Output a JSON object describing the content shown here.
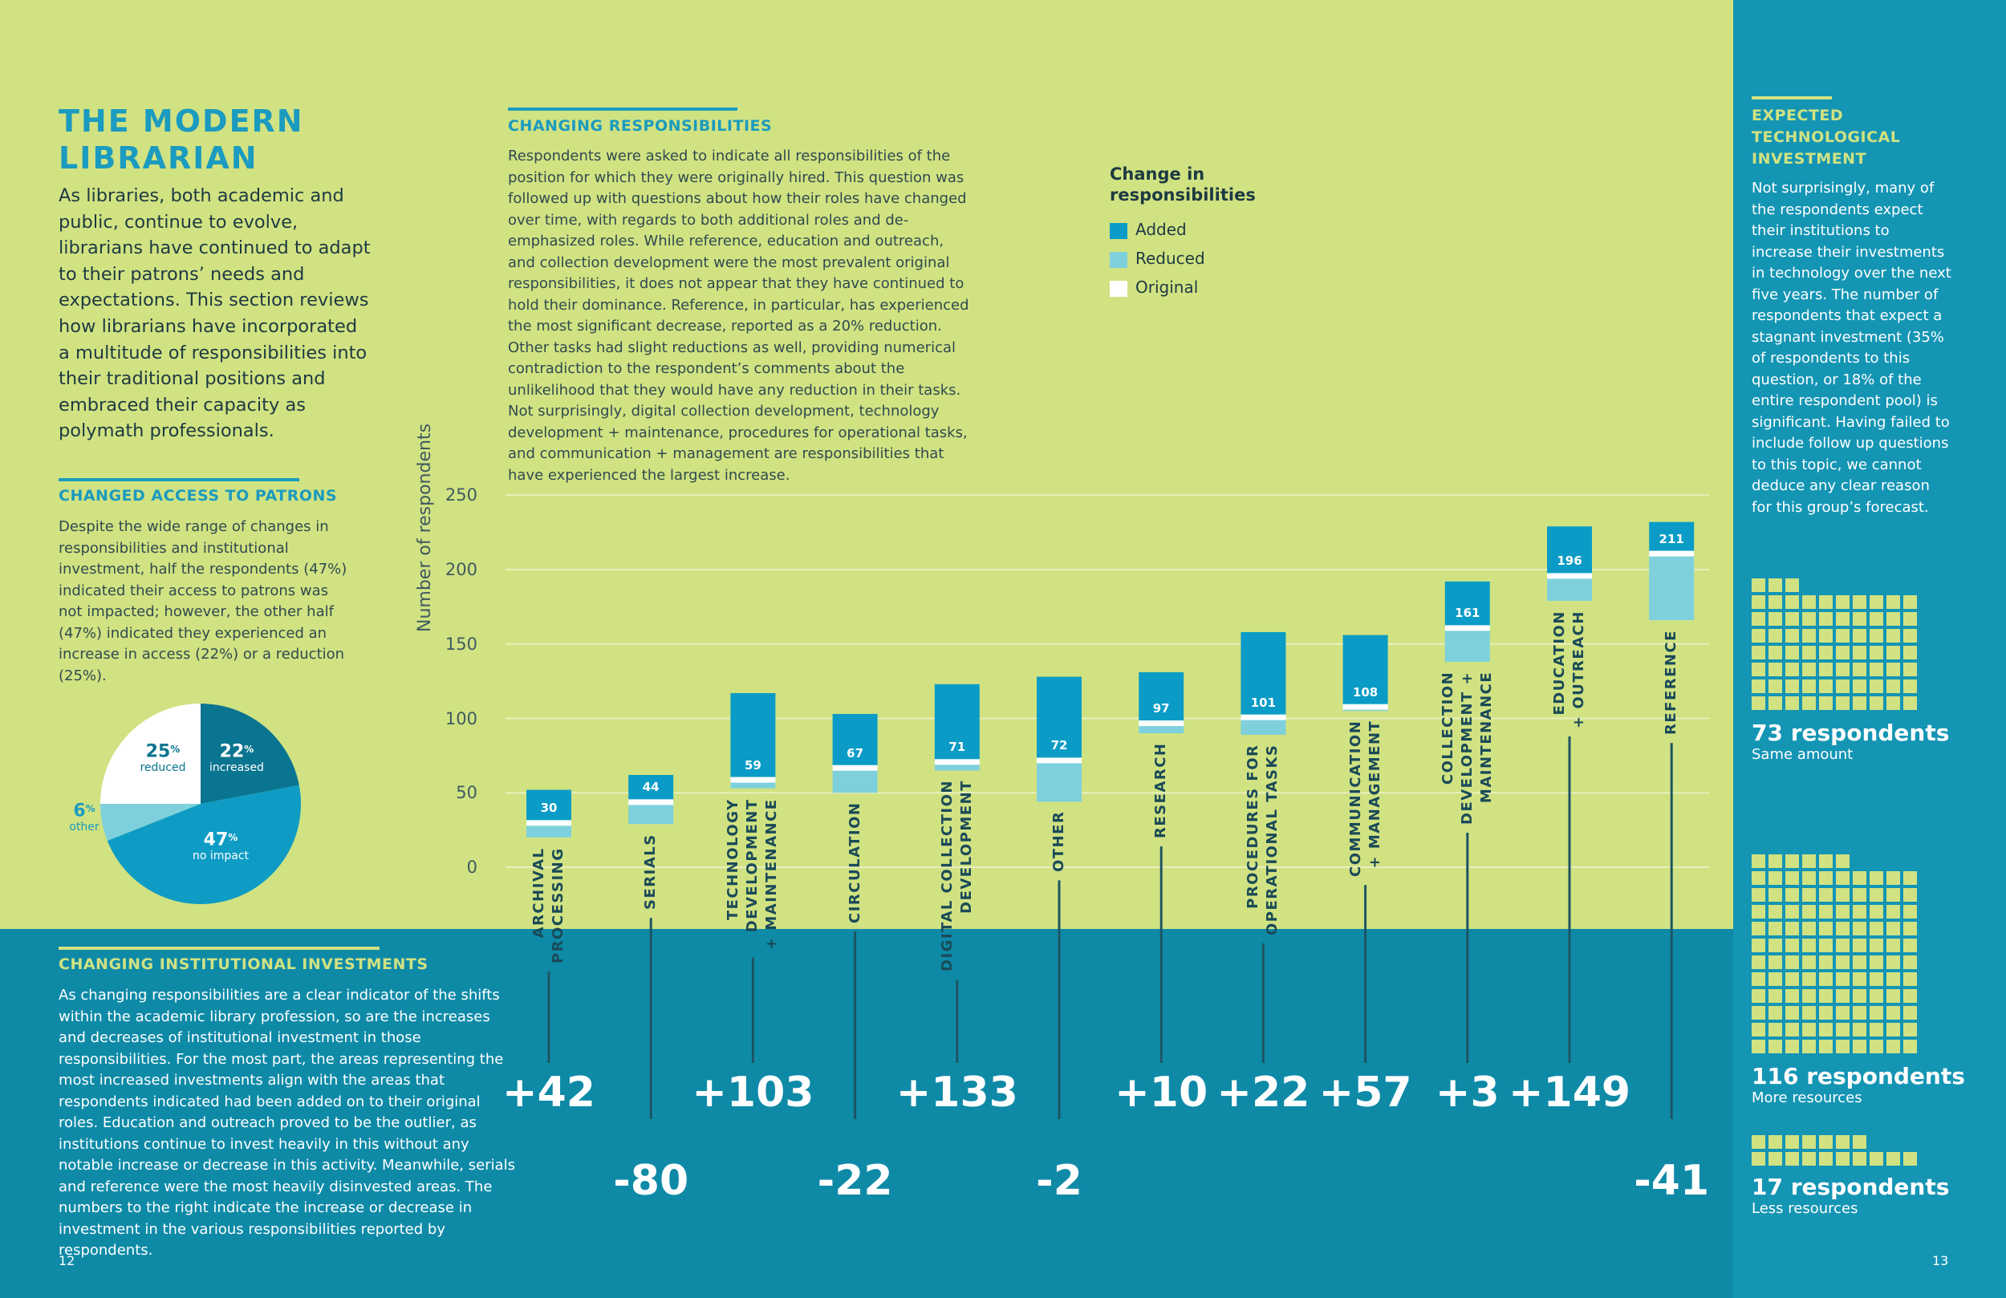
{
  "left": {
    "title": "THE MODERN LIBRARIAN",
    "intro": "As libraries, both academic and public, continue to evolve, librarians have continued to adapt to their patrons’ needs and expectations. This section reviews how librarians have incorporated a multitude of responsibilities into their traditional positions and embraced their capacity as polymath professionals.",
    "access_heading": "CHANGED ACCESS TO PATRONS",
    "access_body": "Despite the wide range of changes in responsibilities and institutional investment, half the respondents (47%) indicated their access to patrons was not impacted; however, the other half (47%) indicated they experienced an increase in access (22%) or a reduction (25%).",
    "invest_heading": "CHANGING INSTITUTIONAL INVESTMENTS",
    "invest_body": "As changing responsibilities are a clear indicator of the shifts within the academic library profession, so are the increases and decreases of institutional investment in those responsibilities. For the most part, the areas representing the most increased investments align with the areas that respondents indicated had been added on to their original roles. Education and outreach proved to be the outlier, as institutions continue to invest heavily in this without any notable increase or decrease in this activity. Meanwhile, serials and reference were the most heavily disinvested areas. The numbers to the right indicate the increase or decrease in investment in the various responsibilities reported by respondents.",
    "page_number": "12"
  },
  "pie": {
    "slices": [
      {
        "label": "increased",
        "value": 22,
        "value_text": "22",
        "color": "#0a7590"
      },
      {
        "label": "no impact",
        "value": 47,
        "value_text": "47",
        "color": "#0e9cc4"
      },
      {
        "label": "other",
        "value": 6,
        "value_text": "6",
        "color": "#7ed1dc"
      },
      {
        "label": "reduced",
        "value": 25,
        "value_text": "25",
        "color": "#ffffff"
      }
    ],
    "percent_sign": "%"
  },
  "middle": {
    "heading": "CHANGING RESPONSIBILITIES",
    "body": "Respondents were asked to indicate all responsibilities of the position for which they were originally hired. This question was followed up with questions about how their roles have changed over time, with regards to both additional roles and de-emphasized roles. While reference, education and outreach, and collection development were the most prevalent original responsibilities, it does not appear that they have continued to hold their dominance. Reference, in particular, has experienced the most significant decrease, reported as a 20% reduction. Other tasks had slight reductions as well, providing numerical contradiction to the respondent’s comments about the unlikelihood that they would have any reduction in their tasks. Not surprisingly, digital collection development, technology development + maintenance, procedures for operational tasks, and communication + management are responsibilities that have experienced the largest increase."
  },
  "chart_data": {
    "type": "bar",
    "title": "Change in responsibilities",
    "ylabel": "Number of respondents",
    "ylim": [
      0,
      250
    ],
    "yticks": [
      "0",
      "50",
      "100",
      "150",
      "200",
      "250"
    ],
    "legend": [
      {
        "name": "Added",
        "color": "#0a9cc6"
      },
      {
        "name": "Reduced",
        "color": "#7ed1dc"
      },
      {
        "name": "Original",
        "color": "#ffffff"
      }
    ],
    "categories": [
      {
        "name": "ARCHIVAL PROCESSING",
        "lines": [
          "ARCHIVAL",
          "PROCESSING"
        ],
        "original": 30,
        "original_text": "30",
        "added": 22,
        "reduced": 10,
        "investment": "+42"
      },
      {
        "name": "SERIALS",
        "lines": [
          "SERIALS"
        ],
        "original": 44,
        "original_text": "44",
        "added": 18,
        "reduced": 15,
        "investment": "-80"
      },
      {
        "name": "TECHNOLOGY DEVELOPMENT + MAINTENANCE",
        "lines": [
          "TECHNOLOGY",
          "DEVELOPMENT",
          "+ MAINTENANCE"
        ],
        "original": 59,
        "original_text": "59",
        "added": 58,
        "reduced": 6,
        "investment": "+103"
      },
      {
        "name": "CIRCULATION",
        "lines": [
          "CIRCULATION"
        ],
        "original": 67,
        "original_text": "67",
        "added": 36,
        "reduced": 17,
        "investment": "-22"
      },
      {
        "name": "DIGITAL COLLECTION DEVELOPMENT",
        "lines": [
          "DIGITAL COLLECTION",
          "DEVELOPMENT"
        ],
        "original": 71,
        "original_text": "71",
        "added": 52,
        "reduced": 6,
        "investment": "+133"
      },
      {
        "name": "OTHER",
        "lines": [
          "OTHER"
        ],
        "original": 72,
        "original_text": "72",
        "added": 56,
        "reduced": 28,
        "investment": "-2"
      },
      {
        "name": "RESEARCH",
        "lines": [
          "RESEARCH"
        ],
        "original": 97,
        "original_text": "97",
        "added": 34,
        "reduced": 7,
        "investment": "+10"
      },
      {
        "name": "PROCEDURES FOR OPERATIONAL TASKS",
        "lines": [
          "PROCEDURES FOR",
          "OPERATIONAL TASKS"
        ],
        "original": 101,
        "original_text": "101",
        "added": 57,
        "reduced": 12,
        "investment": "+22"
      },
      {
        "name": "COMMUNICATION + MANAGEMENT",
        "lines": [
          "COMMUNICATION",
          "+ MANAGEMENT"
        ],
        "original": 108,
        "original_text": "108",
        "added": 48,
        "reduced": 3,
        "investment": "+57"
      },
      {
        "name": "COLLECTION DEVELOPMENT + MAINTENANCE",
        "lines": [
          "COLLECTION",
          "DEVELOPMENT +",
          "MAINTENANCE"
        ],
        "original": 161,
        "original_text": "161",
        "added": 31,
        "reduced": 23,
        "investment": "+3"
      },
      {
        "name": "EDUCATION + OUTREACH",
        "lines": [
          "EDUCATION",
          "+ OUTREACH"
        ],
        "original": 196,
        "original_text": "196",
        "added": 33,
        "reduced": 17,
        "investment": "+149"
      },
      {
        "name": "REFERENCE",
        "lines": [
          "REFERENCE"
        ],
        "original": 211,
        "original_text": "211",
        "added": 21,
        "reduced": 45,
        "investment": "-41"
      }
    ]
  },
  "right": {
    "heading_lines": [
      "EXPECTED",
      "TECHNOLOGICAL",
      "INVESTMENT"
    ],
    "body": "Not surprisingly, many of the respondents expect their institutions to increase their investments in technology over the next five years. The number of respondents that expect a stagnant investment (35% of respondents to this question, or 18% of the entire respondent pool) is significant. Having failed to include follow up questions to this topic, we cannot deduce any clear reason for this group’s forecast.",
    "groups": [
      {
        "count": 73,
        "title": "73 respondents",
        "subtitle": "Same amount"
      },
      {
        "count": 116,
        "title": "116 respondents",
        "subtitle": "More resources"
      },
      {
        "count": 17,
        "title": "17 respondents",
        "subtitle": "Less resources"
      }
    ],
    "page_number": "13",
    "square_color": "#d1e282"
  }
}
